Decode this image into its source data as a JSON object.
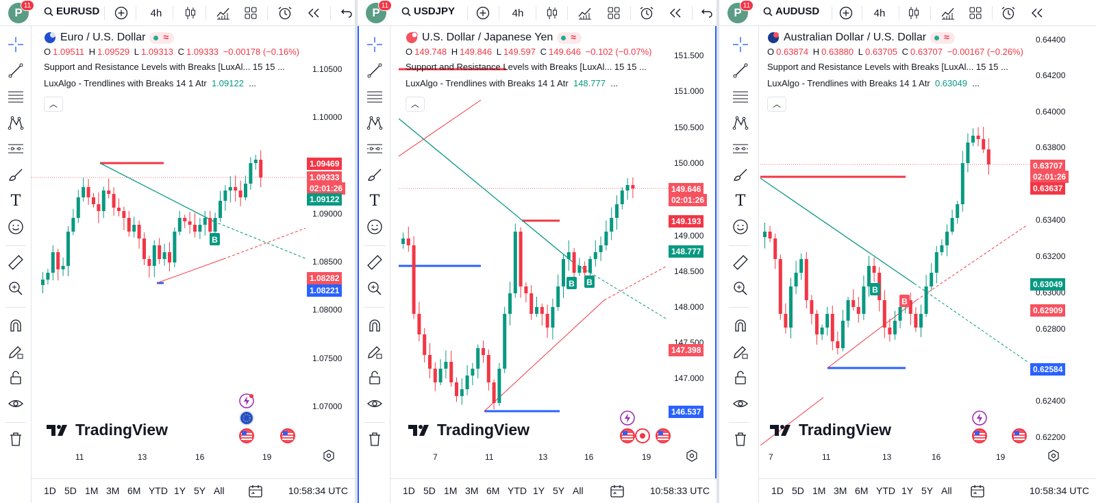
{
  "panes": [
    {
      "symbol": "EURUSD",
      "notifications": "11",
      "avatar_letter": "P",
      "interval": "4h",
      "title": "Euro / U.S. Dollar",
      "ohlc": {
        "o": "O",
        "ov": "1.09511",
        "h": "H",
        "hv": "1.09529",
        "l": "L",
        "lv": "1.09313",
        "c": "C",
        "cv": "1.09333",
        "chg": "−0.00178 (−0.16%)"
      },
      "indicator1": "Support and Resistance Levels with Breaks [LuxAl...  15 15 ...",
      "indicator2": "LuxAlgo - Trendlines with Breaks 14 1 Atr",
      "indicator2_value": "1.09122",
      "indicator2_more": "...",
      "price_ticks": [
        "1.10500",
        "1.10000",
        "1.09000",
        "1.08500",
        "1.08000",
        "1.07500",
        "1.07000"
      ],
      "tags": [
        {
          "text": "1.09469",
          "color": "#f23645"
        },
        {
          "text": "1.09333",
          "color": "#f7525f"
        },
        {
          "text": "02:01:26",
          "color": "#f7525f"
        },
        {
          "text": "1.09122",
          "color": "#089981"
        },
        {
          "text": "1.08282",
          "color": "#f7525f"
        },
        {
          "text": "1.08221",
          "color": "#2962ff"
        }
      ],
      "x_ticks": [
        "11",
        "13",
        "16",
        "19"
      ],
      "ranges": [
        "1D",
        "5D",
        "1M",
        "3M",
        "6M",
        "YTD",
        "1Y",
        "5Y",
        "All"
      ],
      "time": "10:58:34 UTC",
      "watermark": "TradingView",
      "break_label": "B"
    },
    {
      "symbol": "USDJPY",
      "notifications": "11",
      "avatar_letter": "P",
      "interval": "4h",
      "title": "U.S. Dollar / Japanese Yen",
      "ohlc": {
        "o": "O",
        "ov": "149.748",
        "h": "H",
        "hv": "149.846",
        "l": "L",
        "lv": "149.597",
        "c": "C",
        "cv": "149.646",
        "chg": "−0.102 (−0.07%)"
      },
      "indicator1": "Support and Resistance Levels with Breaks [LuxAl...  15 15 ...",
      "indicator2": "LuxAlgo - Trendlines with Breaks 14 1 Atr",
      "indicator2_value": "148.777",
      "indicator2_more": "...",
      "price_ticks": [
        "151.500",
        "151.000",
        "150.500",
        "150.000",
        "149.000",
        "148.500",
        "148.000",
        "147.500",
        "147.000"
      ],
      "tags": [
        {
          "text": "149.646",
          "color": "#f7525f"
        },
        {
          "text": "02:01:26",
          "color": "#f7525f"
        },
        {
          "text": "149.193",
          "color": "#f23645"
        },
        {
          "text": "148.777",
          "color": "#089981"
        },
        {
          "text": "147.398",
          "color": "#f7525f"
        },
        {
          "text": "146.537",
          "color": "#2962ff"
        }
      ],
      "x_ticks": [
        "7",
        "11",
        "13",
        "16",
        "19"
      ],
      "ranges": [
        "1D",
        "5D",
        "1M",
        "3M",
        "6M",
        "YTD",
        "1Y",
        "5Y",
        "All"
      ],
      "time": "10:58:33 UTC",
      "watermark": "TradingView",
      "break_label": "B"
    },
    {
      "symbol": "AUDUSD",
      "notifications": "11",
      "avatar_letter": "P",
      "interval": "4h",
      "title": "Australian Dollar / U.S. Dollar",
      "ohlc": {
        "o": "O",
        "ov": "0.63874",
        "h": "H",
        "hv": "0.63880",
        "l": "L",
        "lv": "0.63705",
        "c": "C",
        "cv": "0.63707",
        "chg": "−0.00167 (−0.26%)"
      },
      "indicator1": "Support and Resistance Levels with Breaks [LuxAl...  15 15 ...",
      "indicator2": "LuxAlgo - Trendlines with Breaks 14 1 Atr",
      "indicator2_value": "0.63049",
      "indicator2_more": "...",
      "price_ticks": [
        "0.64400",
        "0.64200",
        "0.64000",
        "0.63800",
        "0.63400",
        "0.63200",
        "0.63000",
        "0.62800",
        "0.62400",
        "0.62200"
      ],
      "tags": [
        {
          "text": "0.63707",
          "color": "#f7525f"
        },
        {
          "text": "02:01:26",
          "color": "#f7525f"
        },
        {
          "text": "0.63637",
          "color": "#f23645"
        },
        {
          "text": "0.63049",
          "color": "#089981"
        },
        {
          "text": "0.62909",
          "color": "#f7525f"
        },
        {
          "text": "0.62584",
          "color": "#2962ff"
        }
      ],
      "x_ticks": [
        "7",
        "11",
        "13",
        "16",
        "19"
      ],
      "ranges": [
        "1D",
        "5D",
        "1M",
        "3M",
        "6M",
        "YTD",
        "1Y",
        "5Y",
        "All"
      ],
      "time": "10:58:34 UTC",
      "watermark": "TradingView",
      "break_label": "B"
    }
  ],
  "colors": {
    "up": "#089981",
    "down": "#f23645",
    "accent": "#2962ff",
    "support": "#2962ff",
    "resistance": "#f23645"
  }
}
